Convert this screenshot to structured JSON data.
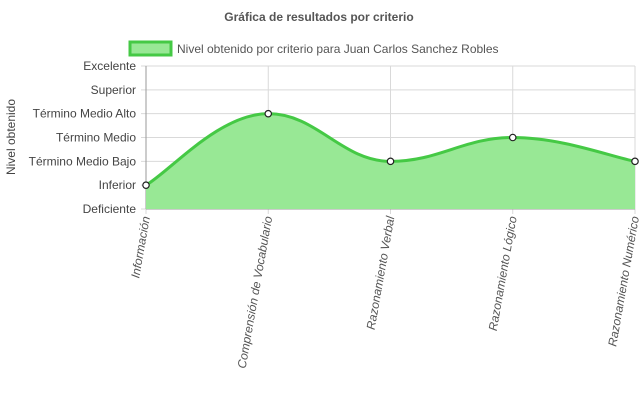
{
  "chart_data": {
    "type": "area",
    "title": "Gráfica de resultados por criterio",
    "ylabel": "Nivel obtenido",
    "xlabel": "",
    "y_levels": [
      "Deficiente",
      "Inferior",
      "Término Medio Bajo",
      "Término Medio",
      "Término Medio Alto",
      "Superior",
      "Excelente"
    ],
    "ylim": [
      0,
      6
    ],
    "categories": [
      "Información",
      "Comprensión de Vocabulario",
      "Razonamiento Verbal",
      "Razonamiento Lógico",
      "Razonamiento Numérico"
    ],
    "series": [
      {
        "name": "Nivel obtenido por criterio para Juan Carlos Sanchez Robles",
        "values": [
          1,
          4,
          2,
          3,
          2
        ]
      }
    ],
    "colors": {
      "fill": "#98e895",
      "stroke": "#45c945",
      "grid": "#d9d9d9",
      "point_fill": "#ffffff",
      "point_stroke": "#222222"
    },
    "grid": true,
    "legend_position": "top"
  }
}
